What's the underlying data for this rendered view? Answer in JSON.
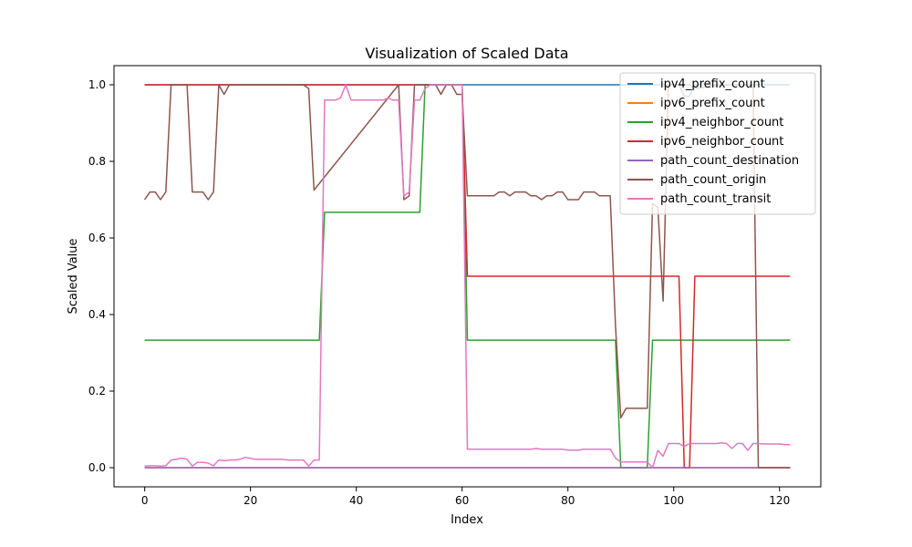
{
  "chart_data": {
    "type": "line",
    "title": "Visualization of Scaled Data",
    "xlabel": "Index",
    "ylabel": "Scaled Value",
    "xlim": [
      -5.8,
      127.8
    ],
    "ylim": [
      -0.05,
      1.05
    ],
    "xticks": [
      0,
      20,
      40,
      60,
      80,
      100,
      120
    ],
    "yticks": [
      0.0,
      0.2,
      0.4,
      0.6,
      0.8,
      1.0
    ],
    "grid": false,
    "legend": "top-right",
    "series": [
      {
        "name": "ipv4_prefix_count",
        "color": "#1f77b4",
        "x": [
          0,
          60,
          101,
          102,
          103,
          104,
          122
        ],
        "y": [
          1.0,
          1.0,
          1.0,
          0.97,
          0.97,
          1.0,
          1.0
        ]
      },
      {
        "name": "ipv6_prefix_count",
        "color": "#ff7f0e",
        "x": [
          0,
          122
        ],
        "y": [
          0.0,
          0.0
        ]
      },
      {
        "name": "ipv4_neighbor_count",
        "color": "#2ca02c",
        "x": [
          0,
          33,
          34,
          52,
          53,
          60,
          61,
          89,
          90,
          95,
          96,
          122
        ],
        "y": [
          0.333,
          0.333,
          0.667,
          0.667,
          1.0,
          1.0,
          0.333,
          0.333,
          0.0,
          0.0,
          0.333,
          0.333
        ]
      },
      {
        "name": "ipv6_neighbor_count",
        "color": "#d62728",
        "x": [
          0,
          60,
          61,
          101,
          102,
          103,
          104,
          122
        ],
        "y": [
          1.0,
          1.0,
          0.5,
          0.5,
          0.0,
          0.0,
          0.5,
          0.5
        ]
      },
      {
        "name": "path_count_destination",
        "color": "#9467bd",
        "x": [
          0,
          122
        ],
        "y": [
          0.0,
          0.0
        ]
      },
      {
        "name": "path_count_origin",
        "color": "#8c564b",
        "x": [
          0,
          1,
          2,
          3,
          4,
          5,
          6,
          7,
          8,
          9,
          10,
          11,
          12,
          13,
          14,
          15,
          16,
          17,
          30,
          31,
          32,
          48,
          49,
          50,
          51,
          52,
          55,
          56,
          57,
          58,
          59,
          60,
          61,
          62,
          66,
          67,
          68,
          69,
          70,
          71,
          72,
          73,
          74,
          75,
          76,
          77,
          78,
          79,
          80,
          81,
          82,
          83,
          84,
          85,
          86,
          87,
          88,
          89,
          90,
          91,
          95,
          96,
          97,
          98,
          99,
          100,
          103,
          104,
          110,
          111,
          115,
          116,
          122
        ],
        "y": [
          0.7,
          0.72,
          0.72,
          0.7,
          0.72,
          1.0,
          1.0,
          1.0,
          1.0,
          0.72,
          0.72,
          0.72,
          0.7,
          0.72,
          1.0,
          0.975,
          1.0,
          1.0,
          1.0,
          0.99,
          0.725,
          1.0,
          0.7,
          0.71,
          1.0,
          1.0,
          1.0,
          0.975,
          1.0,
          1.0,
          0.975,
          0.975,
          0.71,
          0.71,
          0.71,
          0.72,
          0.72,
          0.71,
          0.72,
          0.72,
          0.72,
          0.71,
          0.71,
          0.7,
          0.71,
          0.71,
          0.72,
          0.72,
          0.7,
          0.7,
          0.7,
          0.72,
          0.72,
          0.72,
          0.71,
          0.71,
          0.71,
          0.37,
          0.13,
          0.155,
          0.155,
          0.69,
          0.68,
          0.435,
          1.0,
          1.0,
          1.0,
          0.99,
          1.0,
          1.0,
          1.0,
          0.0,
          0.0
        ]
      },
      {
        "name": "path_count_transit",
        "color": "#e377c2",
        "x": [
          0,
          1,
          2,
          3,
          4,
          5,
          6,
          7,
          8,
          9,
          10,
          11,
          12,
          13,
          14,
          15,
          16,
          17,
          18,
          19,
          20,
          21,
          22,
          23,
          24,
          25,
          26,
          27,
          28,
          29,
          30,
          31,
          32,
          33,
          34,
          35,
          36,
          37,
          38,
          39,
          40,
          41,
          42,
          43,
          44,
          45,
          46,
          47,
          48,
          49,
          50,
          51,
          52,
          53,
          54,
          55,
          56,
          57,
          58,
          59,
          60,
          61,
          62,
          63,
          64,
          65,
          66,
          67,
          68,
          69,
          70,
          71,
          72,
          73,
          74,
          75,
          76,
          77,
          78,
          79,
          80,
          81,
          82,
          83,
          84,
          85,
          86,
          87,
          88,
          89,
          90,
          91,
          92,
          93,
          94,
          95,
          96,
          97,
          98,
          99,
          100,
          101,
          102,
          103,
          104,
          105,
          106,
          107,
          108,
          109,
          110,
          111,
          112,
          113,
          114,
          115,
          116,
          117,
          118,
          119,
          120,
          121,
          122
        ],
        "y": [
          0.004,
          0.005,
          0.005,
          0.004,
          0.005,
          0.02,
          0.022,
          0.025,
          0.022,
          0.004,
          0.014,
          0.014,
          0.012,
          0.005,
          0.02,
          0.018,
          0.02,
          0.02,
          0.022,
          0.027,
          0.024,
          0.022,
          0.022,
          0.022,
          0.022,
          0.022,
          0.022,
          0.02,
          0.02,
          0.02,
          0.02,
          0.004,
          0.02,
          0.02,
          0.96,
          0.96,
          0.96,
          0.965,
          1.0,
          0.96,
          0.96,
          0.96,
          0.96,
          0.96,
          0.96,
          0.96,
          0.965,
          0.96,
          0.96,
          0.71,
          0.72,
          0.96,
          0.96,
          0.99,
          1.0,
          1.0,
          1.0,
          1.0,
          1.0,
          1.0,
          1.0,
          0.048,
          0.048,
          0.048,
          0.048,
          0.048,
          0.048,
          0.048,
          0.048,
          0.048,
          0.048,
          0.048,
          0.048,
          0.048,
          0.05,
          0.048,
          0.048,
          0.048,
          0.048,
          0.048,
          0.046,
          0.046,
          0.046,
          0.048,
          0.048,
          0.048,
          0.048,
          0.048,
          0.048,
          0.025,
          0.015,
          0.015,
          0.015,
          0.015,
          0.015,
          0.015,
          0.0,
          0.045,
          0.03,
          0.063,
          0.063,
          0.063,
          0.055,
          0.063,
          0.063,
          0.063,
          0.063,
          0.063,
          0.063,
          0.065,
          0.063,
          0.05,
          0.063,
          0.063,
          0.045,
          0.063,
          0.063,
          0.062,
          0.062,
          0.062,
          0.062,
          0.06,
          0.06
        ]
      }
    ]
  }
}
